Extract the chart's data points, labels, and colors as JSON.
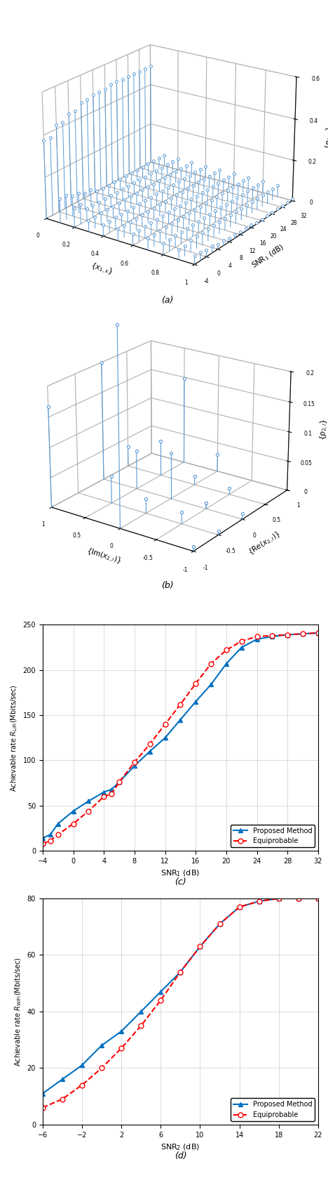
{
  "subplot_a": {
    "snr_values": [
      -4,
      -2,
      0,
      2,
      4,
      6,
      8,
      10,
      12,
      14,
      16,
      18,
      20,
      22,
      24,
      26,
      28,
      30,
      32
    ],
    "x_values": [
      0.0,
      0.1,
      0.2,
      0.3,
      0.4,
      0.5,
      0.6,
      0.7,
      0.8,
      0.9,
      1.0
    ],
    "color": "#5b9bd5"
  },
  "subplot_b": {
    "points": [
      {
        "re": -1.0,
        "im": 1.0,
        "p": 0.167
      },
      {
        "re": -1.0,
        "im": 0.0,
        "p": 0.32
      },
      {
        "re": 0.0,
        "im": 1.0,
        "p": 0.2
      },
      {
        "re": 0.0,
        "im": 0.0,
        "p": 0.078
      },
      {
        "re": 0.0,
        "im": 0.5,
        "p": 0.065
      },
      {
        "re": -0.5,
        "im": 0.5,
        "p": 0.045
      },
      {
        "re": 0.5,
        "im": 0.5,
        "p": 0.06
      },
      {
        "re": 1.0,
        "im": 0.5,
        "p": 0.148
      },
      {
        "re": 0.0,
        "im": -0.5,
        "p": 0.01
      },
      {
        "re": 0.0,
        "im": -1.0,
        "p": 0.01
      },
      {
        "re": 0.5,
        "im": 0.0,
        "p": 0.014
      },
      {
        "re": 0.5,
        "im": -0.5,
        "p": 0.01
      },
      {
        "re": 1.0,
        "im": 0.0,
        "p": 0.03
      },
      {
        "re": -0.5,
        "im": -0.5,
        "p": 0.02
      },
      {
        "re": 0.5,
        "im": 1.0,
        "p": 0.035
      },
      {
        "re": -0.5,
        "im": 0.0,
        "p": 0.024
      },
      {
        "re": -1.0,
        "im": -1.0,
        "p": 0.008
      },
      {
        "re": 0.0,
        "im": -0.5,
        "p": 0.01
      },
      {
        "re": -0.5,
        "im": -1.0,
        "p": 0.006
      }
    ],
    "color": "#5b9bd5"
  },
  "subplot_c": {
    "snr": [
      -4,
      -3,
      -2,
      0,
      2,
      4,
      5,
      6,
      8,
      10,
      12,
      14,
      16,
      18,
      20,
      22,
      24,
      26,
      28,
      30,
      32
    ],
    "proposed": [
      14,
      18,
      30,
      44,
      55,
      65,
      68,
      76,
      94,
      110,
      125,
      145,
      165,
      184,
      207,
      225,
      234,
      237,
      239,
      240,
      241
    ],
    "equiprobable": [
      8,
      11,
      18,
      30,
      44,
      60,
      63,
      76,
      98,
      118,
      140,
      162,
      185,
      207,
      222,
      232,
      237,
      238,
      239,
      240,
      241
    ],
    "ylim": [
      0,
      250
    ],
    "yticks": [
      0,
      50,
      100,
      150,
      200,
      250
    ],
    "xticks": [
      -4,
      0,
      4,
      8,
      12,
      16,
      20,
      24,
      28,
      32
    ],
    "proposed_color": "#0070c0",
    "equiprobable_color": "#ff0000"
  },
  "subplot_d": {
    "snr": [
      -6,
      -4,
      -2,
      0,
      2,
      4,
      6,
      8,
      10,
      12,
      14,
      16,
      18,
      20,
      22
    ],
    "proposed": [
      11,
      16,
      21,
      28,
      33,
      40,
      47,
      54,
      63,
      71,
      77,
      79,
      80,
      80,
      80
    ],
    "equiprobable": [
      6,
      9,
      14,
      20,
      27,
      35,
      44,
      54,
      63,
      71,
      77,
      79,
      80,
      80,
      80
    ],
    "ylim": [
      0,
      80
    ],
    "yticks": [
      0,
      20,
      40,
      60,
      80
    ],
    "xticks": [
      -6,
      -2,
      2,
      6,
      10,
      14,
      18,
      22
    ],
    "proposed_color": "#0070c0",
    "equiprobable_color": "#ff0000"
  }
}
